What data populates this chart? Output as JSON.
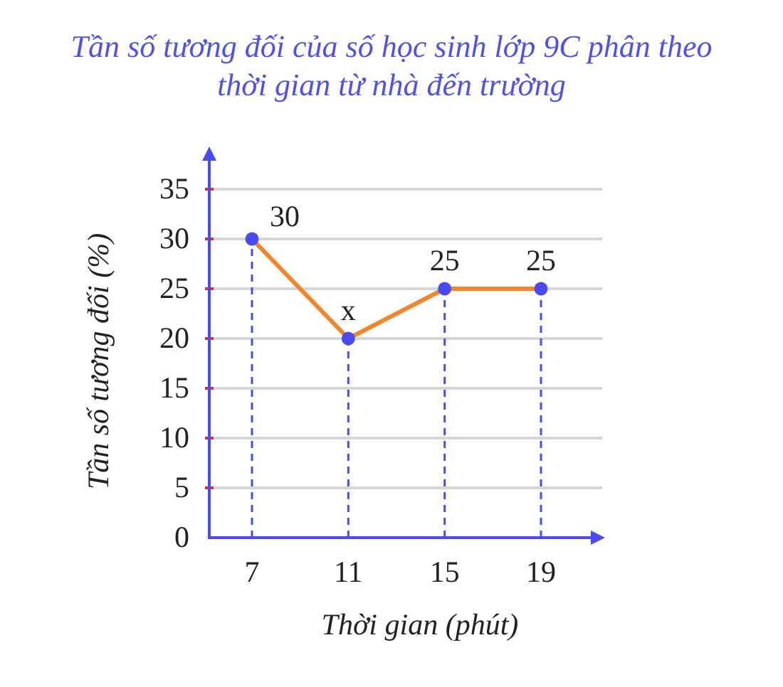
{
  "chart_data": {
    "type": "line",
    "title": "Tần số tương đối của số học sinh lớp 9C phân theo thời gian từ nhà đến trường",
    "xlabel": "Thời gian (phút)",
    "ylabel": "Tần số tương đối (%)",
    "categories": [
      "7",
      "11",
      "15",
      "19"
    ],
    "series": [
      {
        "color": "#f5852a",
        "colors": [
          "#4a4af2",
          "#4a4af2",
          "#4a4af2",
          "#4a4af2"
        ],
        "values": [
          30,
          20,
          25,
          25
        ],
        "value_labels": [
          "30",
          "x",
          "25",
          "25"
        ]
      }
    ],
    "ylim": [
      0,
      35
    ],
    "yticks": [
      0,
      5,
      10,
      15,
      20,
      25,
      30,
      35
    ],
    "grid": true,
    "marker": "circle",
    "line_style": "solid"
  }
}
